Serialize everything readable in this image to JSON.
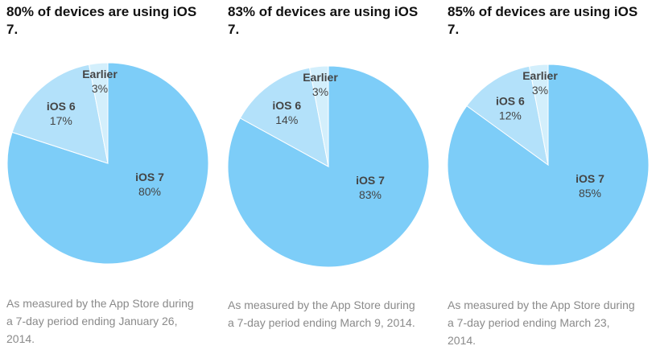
{
  "colors": {
    "iOS 7": "#7dcdf8",
    "iOS 6": "#b3e1fa",
    "Earlier": "#d3effc"
  },
  "chart_data": [
    {
      "type": "pie",
      "title": "80% of devices are using iOS 7.",
      "categories": [
        "iOS 7",
        "iOS 6",
        "Earlier"
      ],
      "values": [
        80,
        17,
        3
      ],
      "labels": [
        "80%",
        "17%",
        "3%"
      ],
      "caption": "As measured by the App Store during a 7-day period ending January 26, 2014."
    },
    {
      "type": "pie",
      "title": "83% of devices are using iOS 7.",
      "categories": [
        "iOS 7",
        "iOS 6",
        "Earlier"
      ],
      "values": [
        83,
        14,
        3
      ],
      "labels": [
        "83%",
        "14%",
        "3%"
      ],
      "caption": "As measured by the App Store during a 7-day period ending March 9, 2014."
    },
    {
      "type": "pie",
      "title": "85% of devices are using iOS 7.",
      "categories": [
        "iOS 7",
        "iOS 6",
        "Earlier"
      ],
      "values": [
        85,
        12,
        3
      ],
      "labels": [
        "85%",
        "12%",
        "3%"
      ],
      "caption": "As measured by the App Store during a 7-day period ending March 23, 2014."
    }
  ]
}
